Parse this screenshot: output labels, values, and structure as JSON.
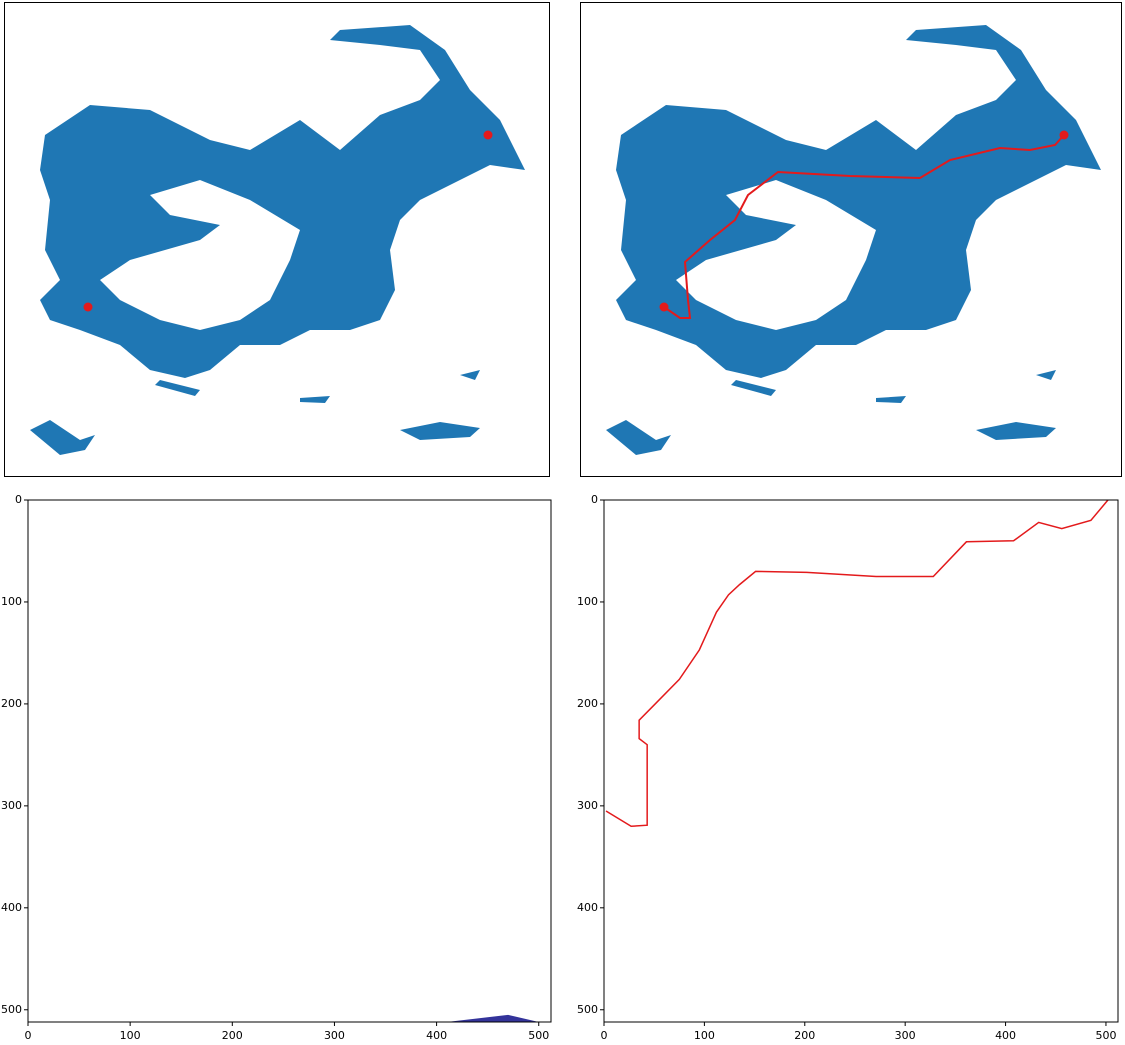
{
  "chart_data": [
    {
      "type": "image",
      "xlim": [
        0,
        512
      ],
      "ylim": [
        512,
        0
      ],
      "xticks": [
        0,
        100,
        200,
        300,
        400,
        500
      ],
      "yticks": [
        0,
        100,
        200,
        300,
        400,
        500
      ]
    },
    {
      "type": "image",
      "xlim": [
        0,
        512
      ],
      "ylim": [
        512,
        0
      ],
      "xticks": [
        0,
        100,
        200,
        300,
        400,
        500
      ],
      "yticks": [
        0,
        100,
        200,
        300,
        400,
        500
      ],
      "series": [
        {
          "color": "#e31a1c",
          "x": [
            2,
            27,
            43,
            43,
            35,
            35,
            50,
            75,
            95,
            112,
            124,
            135,
            151,
            202,
            271,
            328,
            361,
            408,
            433,
            456,
            485,
            502
          ],
          "values": [
            305,
            320,
            319,
            240,
            234,
            216,
            201,
            176,
            147,
            110,
            93,
            83,
            70,
            71,
            75,
            75,
            41,
            40,
            22,
            28,
            20,
            0
          ]
        }
      ]
    }
  ]
}
